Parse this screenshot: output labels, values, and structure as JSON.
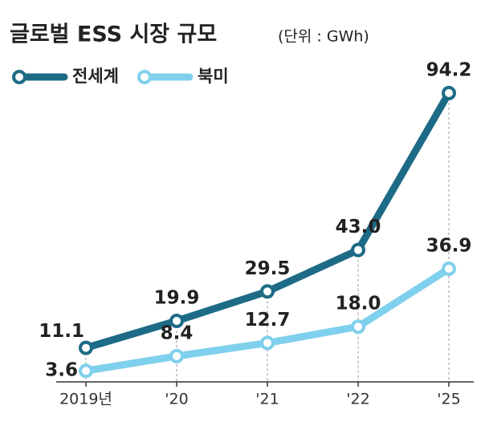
{
  "chart_data": {
    "type": "line",
    "title": "글로벌 ESS 시장 규모",
    "subtitle": "(단위 : GWh)",
    "categories": [
      "2019년",
      "'20",
      "'21",
      "'22",
      "'25"
    ],
    "series": [
      {
        "name": "전세계",
        "color": "#1d6b86",
        "values": [
          11.1,
          19.9,
          29.5,
          43.0,
          94.2
        ],
        "value_labels": [
          "11.1",
          "19.9",
          "29.5",
          "43.0",
          "94.2"
        ]
      },
      {
        "name": "북미",
        "color": "#7fd0ec",
        "values": [
          3.6,
          8.4,
          12.7,
          18.0,
          36.9
        ],
        "value_labels": [
          "3.6",
          "8.4",
          "12.7",
          "18.0",
          "36.9"
        ]
      }
    ]
  }
}
